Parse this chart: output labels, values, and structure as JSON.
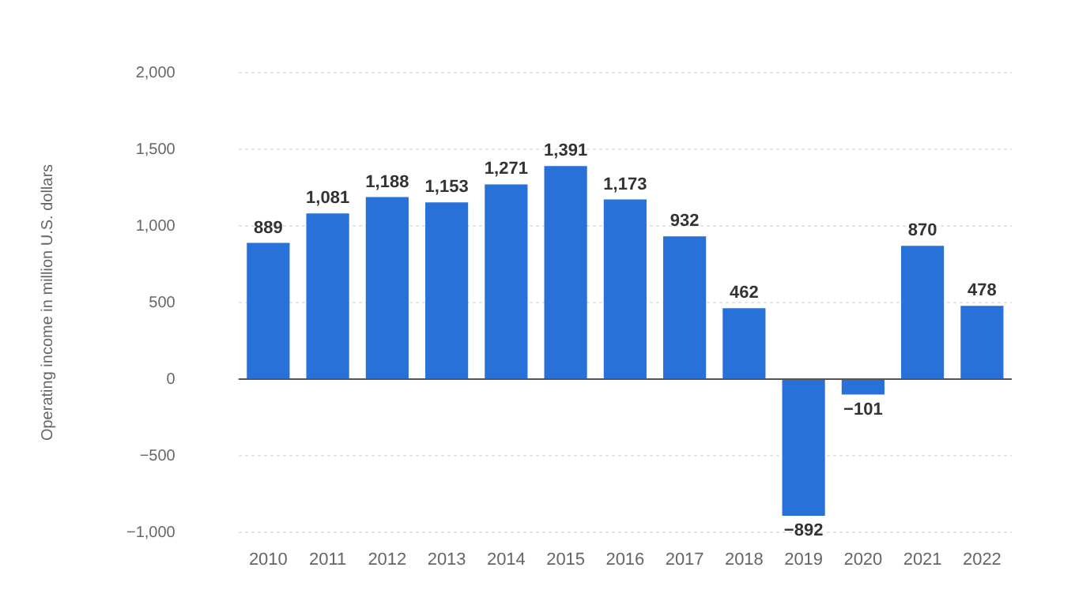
{
  "chart_data": {
    "type": "bar",
    "ylabel": "Operating income in million U.S. dollars",
    "categories": [
      "2010",
      "2011",
      "2012",
      "2013",
      "2014",
      "2015",
      "2016",
      "2017",
      "2018",
      "2019",
      "2020",
      "2021",
      "2022"
    ],
    "values": [
      889,
      1081,
      1188,
      1153,
      1271,
      1391,
      1173,
      932,
      462,
      -892,
      -101,
      870,
      478
    ],
    "value_labels": [
      "889",
      "1,081",
      "1,188",
      "1,153",
      "1,271",
      "1,391",
      "1,173",
      "932",
      "462",
      "−892",
      "−101",
      "870",
      "478"
    ],
    "color": "#2771d9",
    "ylim": [
      -1000,
      2000
    ],
    "yticks": [
      {
        "value": -1000,
        "label": "−1,000"
      },
      {
        "value": -500,
        "label": "−500"
      },
      0,
      500,
      {
        "value": 1000,
        "label": "1,000"
      },
      {
        "value": 1500,
        "label": "1,500"
      },
      {
        "value": 2000,
        "label": "2,000"
      }
    ],
    "grid": "y",
    "legend": false,
    "ref_lines": [
      {
        "axis": "y",
        "value": 0,
        "color": "#555555"
      }
    ]
  }
}
